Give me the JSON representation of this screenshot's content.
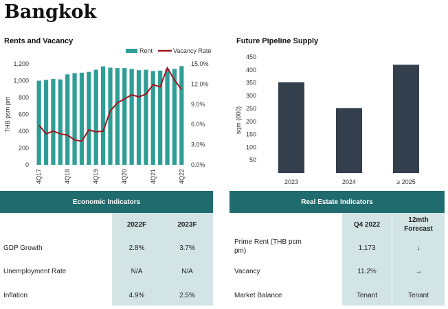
{
  "page_title": "Bangkok",
  "chart_data": [
    {
      "type": "bar+line",
      "title": "Rents and Vacancy",
      "ylabel": "THB psm pm",
      "ylim": [
        0,
        1200
      ],
      "y_ticks": [
        "0",
        "200",
        "400",
        "600",
        "800",
        "1,000",
        "1,200"
      ],
      "y2lim": [
        0,
        15
      ],
      "y2_ticks": [
        "0.0%",
        "3.0%",
        "6.0%",
        "9.0%",
        "12.0%",
        "15.0%"
      ],
      "x_tick_labels": [
        "4Q17",
        "4Q18",
        "4Q19",
        "4Q20",
        "4Q21",
        "4Q22"
      ],
      "categories": [
        "4Q17",
        "1Q18",
        "2Q18",
        "3Q18",
        "4Q18",
        "1Q19",
        "2Q19",
        "3Q19",
        "4Q19",
        "1Q20",
        "2Q20",
        "3Q20",
        "4Q20",
        "1Q21",
        "2Q21",
        "3Q21",
        "4Q21",
        "1Q22",
        "2Q22",
        "3Q22",
        "4Q22"
      ],
      "legend": [
        "Rent",
        "Vacancy Rate"
      ],
      "legend_position": "top-right",
      "series": [
        {
          "name": "Rent",
          "type": "bar",
          "color": "#2f9e96",
          "values": [
            1000,
            1010,
            1020,
            1015,
            1075,
            1090,
            1095,
            1105,
            1130,
            1170,
            1155,
            1150,
            1150,
            1140,
            1125,
            1130,
            1115,
            1120,
            1140,
            1140,
            1173
          ]
        },
        {
          "name": "Vacancy Rate",
          "type": "line",
          "color": "#a0141e",
          "values": [
            5.9,
            4.6,
            5.0,
            4.6,
            4.4,
            3.7,
            3.5,
            5.2,
            4.9,
            5.0,
            8.0,
            9.2,
            9.8,
            10.4,
            10.1,
            10.5,
            11.9,
            11.6,
            14.4,
            12.6,
            11.2
          ]
        }
      ]
    },
    {
      "type": "bar",
      "title": "Future Pipeline Supply",
      "ylabel": "sqm (000)",
      "ylim": [
        0,
        450
      ],
      "y_ticks": [
        "50",
        "100",
        "150",
        "200",
        "250",
        "300",
        "350",
        "400",
        "450"
      ],
      "categories": [
        "2023",
        "2024",
        "≥ 2025"
      ],
      "values": [
        352,
        252,
        420
      ],
      "color": "#333f4d"
    }
  ],
  "economic": {
    "title": "Economic Indicators",
    "columns": [
      "2022F",
      "2023F"
    ],
    "rows": [
      {
        "label": "GDP Growth",
        "values": [
          "2.8%",
          "3.7%"
        ]
      },
      {
        "label": "Unemployment Rate",
        "values": [
          "N/A",
          "N/A"
        ]
      },
      {
        "label": "Inflation",
        "values": [
          "4.9%",
          "2.5%"
        ]
      }
    ]
  },
  "real_estate": {
    "title": "Real Estate Indicators",
    "columns": [
      "Q4 2022",
      "12mth Forecast"
    ],
    "rows": [
      {
        "label": "Prime Rent (THB psm pm)",
        "values": [
          "1,173",
          "↓"
        ]
      },
      {
        "label": "Vacancy",
        "values": [
          "11.2%",
          "→"
        ]
      },
      {
        "label": "Market Balance",
        "values": [
          "Tenant",
          "Tenant"
        ]
      }
    ]
  }
}
